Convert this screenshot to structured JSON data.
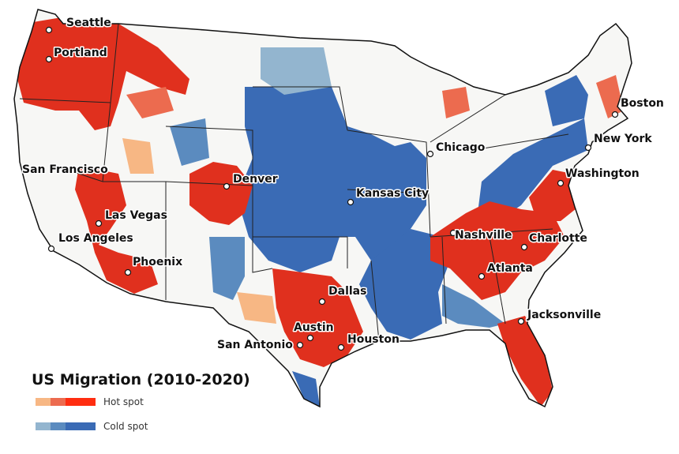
{
  "map": {
    "colors": {
      "land": "#f7f7f5",
      "border": "#222222",
      "hot_light": "#f7b784",
      "hot_mid": "#ec6b4f",
      "hot_strong": "#e0301e",
      "cold_light": "#93b5cf",
      "cold_mid": "#5b8bbf",
      "cold_strong": "#3a6bb5"
    },
    "cities": [
      {
        "name": "Seattle"
      },
      {
        "name": "Portland"
      },
      {
        "name": "San Francisco"
      },
      {
        "name": "Las Vegas"
      },
      {
        "name": "Los Angeles"
      },
      {
        "name": "Phoenix"
      },
      {
        "name": "Denver"
      },
      {
        "name": "Kansas City"
      },
      {
        "name": "Chicago"
      },
      {
        "name": "Dallas"
      },
      {
        "name": "Austin"
      },
      {
        "name": "San Antonio"
      },
      {
        "name": "Houston"
      },
      {
        "name": "Nashville"
      },
      {
        "name": "Atlanta"
      },
      {
        "name": "Charlotte"
      },
      {
        "name": "Jacksonville"
      },
      {
        "name": "Washington"
      },
      {
        "name": "New York"
      },
      {
        "name": "Boston"
      }
    ]
  },
  "legend": {
    "title": "US Migration (2010-2020)",
    "hot_label": "Hot spot",
    "cold_label": "Cold spot"
  }
}
